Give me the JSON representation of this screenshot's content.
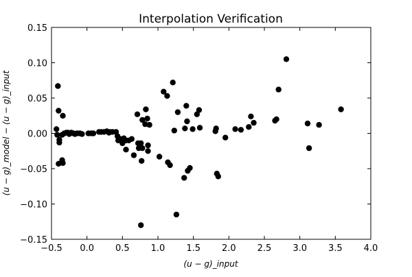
{
  "chart_data": {
    "type": "scatter",
    "title": "Interpolation Verification",
    "xlabel": "(u − g)_input",
    "ylabel": "(u − g)_model − (u − g)_input",
    "xlim": [
      -0.5,
      4.0
    ],
    "ylim": [
      -0.15,
      0.15
    ],
    "xticks": [
      -0.5,
      0.0,
      0.5,
      1.0,
      1.5,
      2.0,
      2.5,
      3.0,
      3.5,
      4.0
    ],
    "yticks": [
      -0.15,
      -0.1,
      -0.05,
      0.0,
      0.05,
      0.1,
      0.15
    ],
    "grid": false,
    "marker_color": "#000000",
    "series": [
      {
        "points": [
          [
            -0.41,
            0.067
          ],
          [
            -0.43,
            0.006
          ],
          [
            -0.42,
            -0.002
          ],
          [
            -0.4,
            0.032
          ],
          [
            -0.39,
            -0.009
          ],
          [
            -0.39,
            -0.013
          ],
          [
            -0.4,
            -0.043
          ],
          [
            -0.34,
            0.025
          ],
          [
            -0.35,
            -0.038
          ],
          [
            -0.34,
            -0.042
          ],
          [
            -0.35,
            -0.002
          ],
          [
            -0.32,
            0.0
          ],
          [
            -0.29,
            0.001
          ],
          [
            -0.27,
            0.001
          ],
          [
            -0.25,
            -0.001
          ],
          [
            -0.22,
            0.001
          ],
          [
            -0.19,
            0.0
          ],
          [
            -0.17,
            -0.001
          ],
          [
            -0.14,
            0.0
          ],
          [
            -0.1,
            0.0
          ],
          [
            -0.07,
            -0.001
          ],
          [
            0.02,
            0.0
          ],
          [
            0.06,
            0.0
          ],
          [
            0.09,
            0.0
          ],
          [
            0.17,
            0.002
          ],
          [
            0.2,
            0.002
          ],
          [
            0.24,
            0.002
          ],
          [
            0.28,
            0.003
          ],
          [
            0.31,
            0.001
          ],
          [
            0.33,
            0.002
          ],
          [
            0.36,
            0.002
          ],
          [
            0.41,
            0.002
          ],
          [
            0.43,
            -0.004
          ],
          [
            0.44,
            -0.01
          ],
          [
            0.47,
            -0.008
          ],
          [
            0.5,
            -0.014
          ],
          [
            0.52,
            -0.007
          ],
          [
            0.55,
            -0.01
          ],
          [
            0.55,
            -0.023
          ],
          [
            0.59,
            -0.01
          ],
          [
            0.63,
            -0.008
          ],
          [
            0.66,
            -0.031
          ],
          [
            0.71,
            0.027
          ],
          [
            0.72,
            -0.014
          ],
          [
            0.73,
            -0.021
          ],
          [
            0.76,
            -0.014
          ],
          [
            0.77,
            -0.039
          ],
          [
            0.78,
            0.019
          ],
          [
            0.78,
            -0.021
          ],
          [
            0.82,
            0.013
          ],
          [
            0.83,
            0.034
          ],
          [
            0.85,
            0.021
          ],
          [
            0.86,
            -0.017
          ],
          [
            0.86,
            -0.025
          ],
          [
            0.88,
            0.012
          ],
          [
            0.76,
            -0.13
          ],
          [
            1.02,
            -0.033
          ],
          [
            1.08,
            0.059
          ],
          [
            1.13,
            0.053
          ],
          [
            1.14,
            -0.041
          ],
          [
            1.17,
            -0.045
          ],
          [
            1.21,
            0.072
          ],
          [
            1.23,
            0.004
          ],
          [
            1.26,
            -0.115
          ],
          [
            1.28,
            0.03
          ],
          [
            1.37,
            -0.063
          ],
          [
            1.38,
            0.007
          ],
          [
            1.4,
            0.039
          ],
          [
            1.41,
            0.017
          ],
          [
            1.42,
            -0.053
          ],
          [
            1.45,
            -0.049
          ],
          [
            1.49,
            0.006
          ],
          [
            1.55,
            0.027
          ],
          [
            1.58,
            0.033
          ],
          [
            1.59,
            0.008
          ],
          [
            1.81,
            0.003
          ],
          [
            1.82,
            0.007
          ],
          [
            1.83,
            -0.057
          ],
          [
            1.85,
            -0.061
          ],
          [
            1.95,
            -0.006
          ],
          [
            2.09,
            0.006
          ],
          [
            2.17,
            0.005
          ],
          [
            2.28,
            0.009
          ],
          [
            2.31,
            0.024
          ],
          [
            2.35,
            0.015
          ],
          [
            2.65,
            0.018
          ],
          [
            2.67,
            0.02
          ],
          [
            2.7,
            0.062
          ],
          [
            2.81,
            0.105
          ],
          [
            3.11,
            0.014
          ],
          [
            3.13,
            -0.021
          ],
          [
            3.27,
            0.012
          ],
          [
            3.58,
            0.034
          ]
        ]
      }
    ]
  }
}
